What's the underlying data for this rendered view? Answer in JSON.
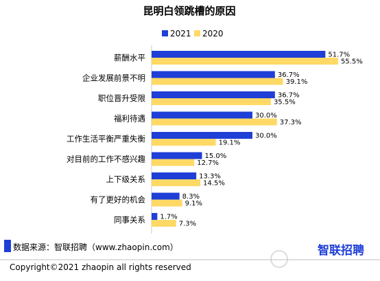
{
  "chart_data": {
    "type": "bar",
    "orientation": "horizontal",
    "title": "昆明白领跳槽的原因",
    "categories": [
      "薪酬水平",
      "企业发展前景不明",
      "职位晋升受限",
      "福利待遇",
      "工作生活平衡严重失衡",
      "对目前的工作不感兴趣",
      "上下级关系",
      "有了更好的机会",
      "同事关系"
    ],
    "series": [
      {
        "name": "2021",
        "color": "#1f3fd6",
        "values": [
          51.7,
          36.7,
          36.7,
          30.0,
          30.0,
          15.0,
          13.3,
          8.3,
          1.7
        ],
        "labels": [
          "51.7%",
          "36.7%",
          "36.7%",
          "30.0%",
          "30.0%",
          "15.0%",
          "13.3%",
          "8.3%",
          "1.7%"
        ]
      },
      {
        "name": "2020",
        "color": "#ffd966",
        "values": [
          55.5,
          39.1,
          35.5,
          37.3,
          19.1,
          12.7,
          14.5,
          9.1,
          7.3
        ],
        "labels": [
          "55.5%",
          "39.1%",
          "35.5%",
          "37.3%",
          "19.1%",
          "12.7%",
          "14.5%",
          "9.1%",
          "7.3%"
        ]
      }
    ],
    "xlim": [
      0,
      60
    ],
    "legend_position": "top-right",
    "grid": false
  },
  "footer": {
    "source": "数据来源：智联招聘（www.zhaopin.com）",
    "copyright": "Copyright©2021 zhaopin all rights reserved",
    "logo": "智联招聘",
    "source_marker_color": "#1f3fd6",
    "logo_color": "#1f3fd6"
  }
}
